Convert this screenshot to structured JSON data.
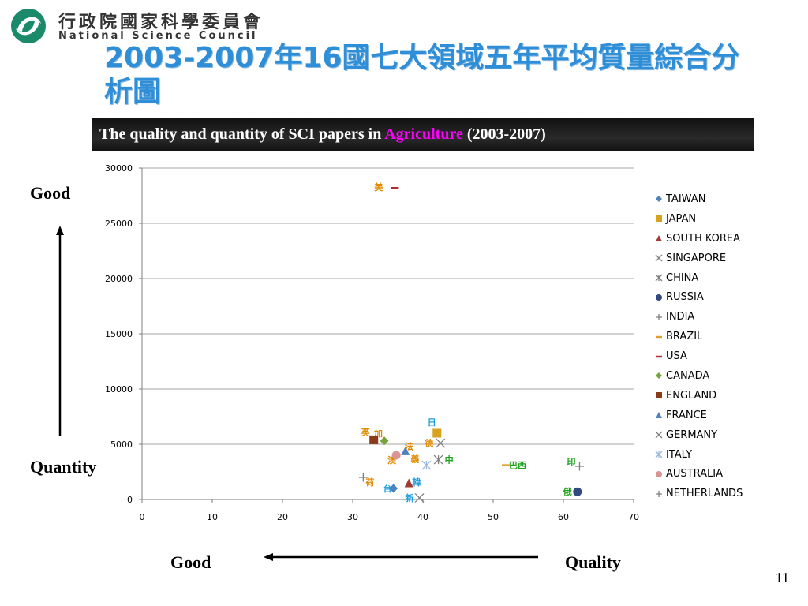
{
  "header": {
    "org_cn": "行政院國家科學委員會",
    "org_en": "National Science Council",
    "title": "2003-2007年16國七大領域五年平均質量綜合分析圖",
    "logo_icon": "nsc-logo-icon"
  },
  "banner": {
    "prefix": "The quality and quantity of SCI papers in ",
    "field": "Agriculture",
    "suffix": " (2003-2007)"
  },
  "labels": {
    "good_top": "Good",
    "quantity": "Quantity",
    "good_bottom": "Good",
    "quality": "Quality"
  },
  "page_number": "11",
  "chart_data": {
    "type": "scatter",
    "xlim": [
      0,
      70
    ],
    "ylim": [
      0,
      30000
    ],
    "xticks": [
      0,
      10,
      20,
      30,
      40,
      50,
      60,
      70
    ],
    "yticks": [
      0,
      5000,
      10000,
      15000,
      20000,
      25000,
      30000
    ],
    "grid": "horizontal",
    "legend_position": "right",
    "series": [
      {
        "name": "TAIWAN",
        "x": 35.8,
        "y": 1000,
        "marker": "diamond",
        "color": "#4f81bd",
        "label": "台",
        "label_color": "#1e9de0"
      },
      {
        "name": "JAPAN",
        "x": 42,
        "y": 6000,
        "marker": "square",
        "color": "#d7a21d",
        "label": "日",
        "label_color": "#1e9de0"
      },
      {
        "name": "SOUTH KOREA",
        "x": 38,
        "y": 1500,
        "marker": "triangle",
        "color": "#a03a32",
        "label": "韓",
        "label_color": "#1e9de0"
      },
      {
        "name": "SINGAPORE",
        "x": 39.5,
        "y": 150,
        "marker": "x",
        "color": "#7f7f7f",
        "label": "新",
        "label_color": "#1e9de0"
      },
      {
        "name": "CHINA",
        "x": 42.2,
        "y": 3600,
        "marker": "star",
        "color": "#7f7f7f",
        "label": "中",
        "label_color": "#1fa31f"
      },
      {
        "name": "RUSSIA",
        "x": 62,
        "y": 700,
        "marker": "circle",
        "color": "#334a80",
        "label": "俄",
        "label_color": "#1fa31f"
      },
      {
        "name": "INDIA",
        "x": 62.3,
        "y": 3000,
        "marker": "plus",
        "color": "#7f7f7f",
        "label": "印",
        "label_color": "#1fa31f"
      },
      {
        "name": "BRAZIL",
        "x": 51.8,
        "y": 3100,
        "marker": "dash",
        "color": "#e0a030",
        "label": "巴西",
        "label_color": "#1fa31f"
      },
      {
        "name": "USA",
        "x": 36,
        "y": 28200,
        "marker": "dash",
        "color": "#b03030",
        "label": "美",
        "label_color": "#e08a00"
      },
      {
        "name": "CANADA",
        "x": 34.5,
        "y": 5300,
        "marker": "diamond",
        "color": "#76a33a",
        "label": "加",
        "label_color": "#e08a00"
      },
      {
        "name": "ENGLAND",
        "x": 33,
        "y": 5400,
        "marker": "square",
        "color": "#8b3a1a",
        "label": "英",
        "label_color": "#e08a00"
      },
      {
        "name": "FRANCE",
        "x": 37.5,
        "y": 4400,
        "marker": "triangle",
        "color": "#4f81bd",
        "label": "法",
        "label_color": "#e08a00"
      },
      {
        "name": "GERMANY",
        "x": 42.5,
        "y": 5100,
        "marker": "x",
        "color": "#7f7f7f",
        "label": "德",
        "label_color": "#e08a00"
      },
      {
        "name": "ITALY",
        "x": 40.5,
        "y": 3100,
        "marker": "star",
        "color": "#9ab7d8",
        "label": "義",
        "label_color": "#e08a00"
      },
      {
        "name": "AUSTRALIA",
        "x": 36.2,
        "y": 4000,
        "marker": "circle",
        "color": "#d99594",
        "label": "澳",
        "label_color": "#e08a00"
      },
      {
        "name": "NETHERLANDS",
        "x": 31.5,
        "y": 2000,
        "marker": "plus",
        "color": "#7f7f7f",
        "label": "荷",
        "label_color": "#e08a00"
      }
    ]
  }
}
